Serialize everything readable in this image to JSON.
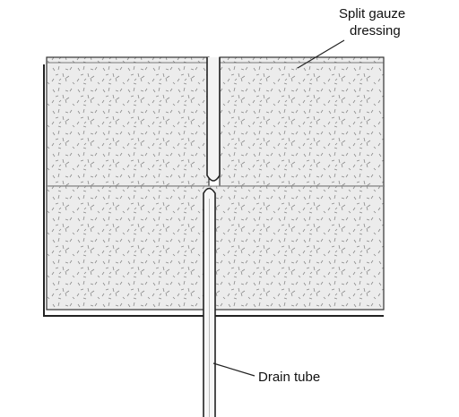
{
  "labels": {
    "gauze_line1": "Split gauze",
    "gauze_line2": "dressing",
    "drain": "Drain tube"
  }
}
